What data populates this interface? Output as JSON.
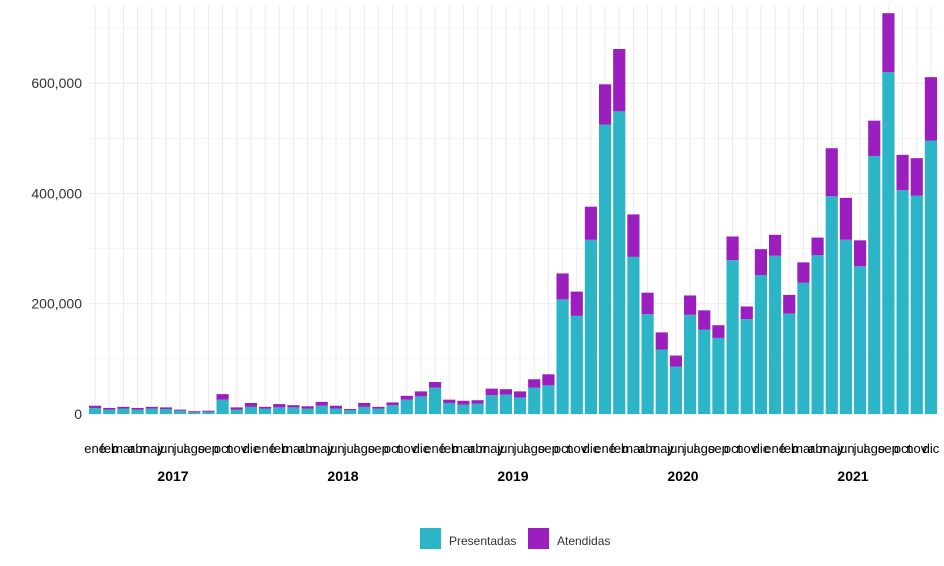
{
  "colors": {
    "presentadas": "#2bb5c6",
    "atendidas": "#9b1fbf",
    "grid": "#ebebeb"
  },
  "chart_data": {
    "type": "bar",
    "stacked": true,
    "title": "",
    "xlabel": "",
    "ylabel": "",
    "ylim": [
      0,
      740000
    ],
    "y_ticks": [
      0,
      200000,
      400000,
      600000
    ],
    "y_tick_labels": [
      "0",
      "200,000",
      "400,000",
      "600,000"
    ],
    "grid": true,
    "legend_position": "bottom",
    "years": [
      "2017",
      "2018",
      "2019",
      "2020",
      "2021"
    ],
    "month_labels": [
      "ene",
      "feb",
      "mar",
      "abr",
      "may",
      "jun",
      "jul",
      "ago",
      "sep",
      "oct",
      "nov",
      "dic"
    ],
    "series": [
      {
        "name": "Presentadas",
        "color": "#2bb5c6",
        "values": [
          11000,
          8000,
          10000,
          8000,
          10000,
          9000,
          6000,
          3000,
          4000,
          26000,
          8000,
          13000,
          10000,
          12000,
          12000,
          10000,
          15000,
          10000,
          7000,
          13000,
          10000,
          16000,
          26000,
          32000,
          48000,
          20000,
          17000,
          19000,
          34000,
          35000,
          30000,
          48000,
          52000,
          208000,
          178000,
          316000,
          525000,
          549000,
          285000,
          181000,
          117000,
          86000,
          180000,
          153000,
          138000,
          279000,
          172000,
          252000,
          287000,
          182000,
          238000,
          288000,
          395000,
          316000,
          268000,
          468000,
          620000,
          406000,
          396000,
          496000
        ]
      },
      {
        "name": "Atendidas",
        "color": "#9b1fbf",
        "values": [
          4000,
          3000,
          3000,
          3000,
          3000,
          3000,
          2000,
          2000,
          2000,
          10000,
          4000,
          7000,
          3000,
          6000,
          4000,
          4000,
          7000,
          5000,
          2000,
          7000,
          3000,
          5000,
          7000,
          9000,
          10000,
          6000,
          7000,
          6000,
          12000,
          10000,
          11000,
          15000,
          20000,
          47000,
          44000,
          60000,
          73000,
          113000,
          77000,
          39000,
          31000,
          20000,
          35000,
          35000,
          23000,
          43000,
          23000,
          47000,
          38000,
          34000,
          37000,
          32000,
          87000,
          76000,
          47000,
          64000,
          107000,
          64000,
          68000,
          115000
        ]
      }
    ]
  }
}
